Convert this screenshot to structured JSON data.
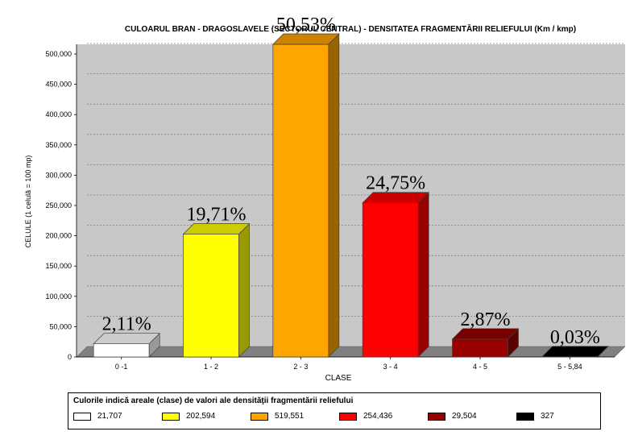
{
  "chart_data": {
    "type": "bar",
    "title": "CULOARUL BRAN - DRAGOSLAVELE (SECTORUL CENTRAL)  -  DENSITATEA FRAGMENTĂRII RELIEFULUI (Km / kmp)",
    "xlabel": "CLASE",
    "ylabel": "CELULE (1 celulă = 100 mp)",
    "ylim": [
      0,
      500000
    ],
    "y_ticks": [
      "0",
      "50,000",
      "100,000",
      "150,000",
      "200,000",
      "250,000",
      "300,000",
      "350,000",
      "400,000",
      "450,000",
      "500,000"
    ],
    "categories": [
      "0 -1",
      "1 - 2",
      "2 - 3",
      "3 - 4",
      "4 - 5",
      "5 - 5,84"
    ],
    "values": [
      21707,
      202594,
      519551,
      254436,
      29504,
      327
    ],
    "percent_labels": [
      "2,11%",
      "19,71%",
      "50,53%",
      "24,75%",
      "2,87%",
      "0,03%"
    ],
    "colors": [
      "#ffffff",
      "#ffff00",
      "#ffa500",
      "#ff0000",
      "#990000",
      "#000000"
    ],
    "grid": true,
    "three_d": true,
    "legend": {
      "title": "Culorile indică areale (clase) de valori ale densităţii fragmentării reliefului",
      "placement": "bottom",
      "items": [
        "21,707",
        "202,594",
        "519,551",
        "254,436",
        "29,504",
        "327"
      ]
    }
  }
}
